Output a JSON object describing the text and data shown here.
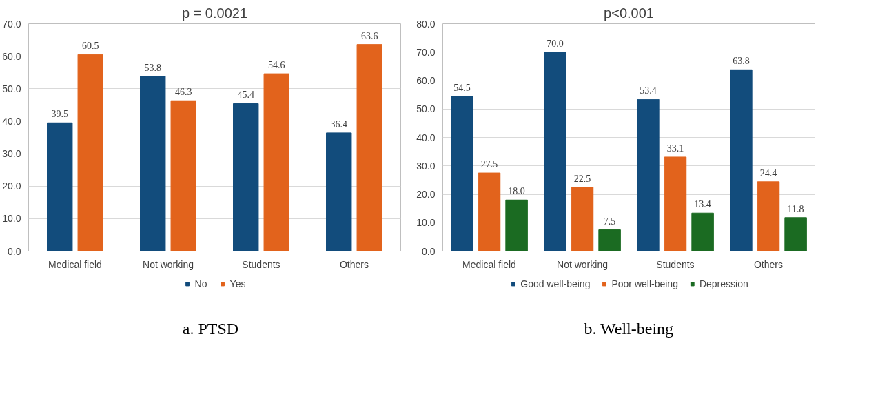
{
  "chart_data": [
    {
      "type": "bar",
      "title": "p = 0.0021",
      "categories": [
        "Medical field",
        "Not working",
        "Students",
        "Others"
      ],
      "series": [
        {
          "name": "No",
          "color": "#124c7c",
          "values": [
            39.5,
            53.8,
            45.4,
            36.4
          ]
        },
        {
          "name": "Yes",
          "color": "#e2631c",
          "values": [
            60.5,
            46.3,
            54.6,
            63.6
          ]
        }
      ],
      "ylim": [
        0,
        70
      ],
      "yticks": [
        {
          "value": 0,
          "label": "0.0"
        },
        {
          "value": 10,
          "label": "10.0"
        },
        {
          "value": 20,
          "label": "20.0"
        },
        {
          "value": 30,
          "label": "30.0"
        },
        {
          "value": 40,
          "label": "40.0"
        },
        {
          "value": 50,
          "label": "50.0"
        },
        {
          "value": 60,
          "label": "60.0"
        },
        {
          "value": 70,
          "label": "70.0"
        }
      ],
      "grid": "y",
      "legend": "bottom",
      "data_labels": true,
      "annotations": [
        "a.   PTSD"
      ]
    },
    {
      "type": "bar",
      "title": "p<0.001",
      "categories": [
        "Medical field",
        "Not working",
        "Students",
        "Others"
      ],
      "series": [
        {
          "name": "Good well-being",
          "color": "#124c7c",
          "values": [
            54.5,
            70.0,
            53.4,
            63.8
          ],
          "value_labels": [
            "54.5",
            "70.0",
            "53.4",
            "63.8"
          ]
        },
        {
          "name": "Poor well-being",
          "color": "#e2631c",
          "values": [
            27.5,
            22.5,
            33.1,
            24.4
          ],
          "value_labels": [
            "27.5",
            "22.5",
            "33.1",
            "24.4"
          ]
        },
        {
          "name": "Depression",
          "color": "#1b6b22",
          "values": [
            18.0,
            7.5,
            13.4,
            11.8
          ],
          "value_labels": [
            "18.0",
            "7.5",
            "13.4",
            "11.8"
          ]
        }
      ],
      "ylim": [
        0,
        80
      ],
      "yticks": [
        {
          "value": 0,
          "label": "0.0"
        },
        {
          "value": 10,
          "label": "10.0"
        },
        {
          "value": 20,
          "label": "20.0"
        },
        {
          "value": 30,
          "label": "30.0"
        },
        {
          "value": 40,
          "label": "40.0"
        },
        {
          "value": 50,
          "label": "50.0"
        },
        {
          "value": 60,
          "label": "60.0"
        },
        {
          "value": 70,
          "label": "70.0"
        },
        {
          "value": 80,
          "label": "80.0"
        }
      ],
      "grid": "y",
      "legend": "bottom",
      "data_labels": true,
      "annotations": [
        "b. Well-being"
      ]
    }
  ]
}
